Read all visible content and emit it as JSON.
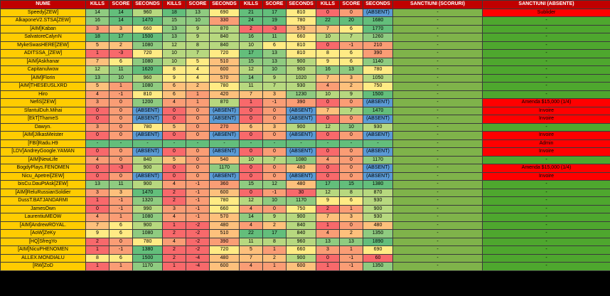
{
  "headers": [
    "NUME",
    "KILLS",
    "SCORE",
    "SECONDS",
    "KILLS",
    "SCORE",
    "SECONDS",
    "KILLS",
    "SCORE",
    "SECONDS",
    "KILLS",
    "SCORE",
    "SECONDS",
    "SANCTIUNI (SCORURI)",
    "SANCTIUNI (ABSENTE)"
  ],
  "rows": [
    [
      "Speedy[ZEW]",
      "14",
      "14",
      "960",
      "18",
      "13",
      "690",
      "21",
      "17",
      "810",
      "0",
      "0",
      "(ABSENT)",
      "-",
      "Sublider"
    ],
    [
      "AlkaponeV2.STSA[ZEW]",
      "16",
      "14",
      "1470",
      "15",
      "10",
      "330",
      "24",
      "19",
      "780",
      "22",
      "20",
      "1680",
      "-",
      "-"
    ],
    [
      "[AIM]Kaban",
      "3",
      "3",
      "660",
      "13",
      "9",
      "870",
      "2",
      "-3",
      "570",
      "7",
      "6",
      "1770",
      "-",
      "-"
    ],
    [
      "SalvatoreCalynN",
      "18",
      "17",
      "1500",
      "13",
      "9",
      "840",
      "16",
      "11",
      "660",
      "10",
      "7",
      "1260",
      "-",
      "-"
    ],
    [
      "MykeSwasHERE[ZEW]",
      "5",
      "2",
      "1080",
      "12",
      "8",
      "840",
      "10",
      "6",
      "810",
      "0",
      "-1",
      "210",
      "-",
      "-"
    ],
    [
      "ADITSSA_[ZEW]",
      "1",
      "-3",
      "720",
      "10",
      "7",
      "720",
      "17",
      "13",
      "810",
      "8",
      "6",
      "390",
      "-",
      "-"
    ],
    [
      "[AIM]Askhanar",
      "7",
      "6",
      "1080",
      "10",
      "5",
      "510",
      "15",
      "13",
      "900",
      "9",
      "6",
      "1140",
      "-",
      "-"
    ],
    [
      "Capitanulwow",
      "12",
      "11",
      "1620",
      "8",
      "4",
      "600",
      "12",
      "10",
      "900",
      "16",
      "13",
      "780",
      "-",
      "-"
    ],
    [
      "[AIM]Florin",
      "13",
      "10",
      "960",
      "9",
      "4",
      "570",
      "14",
      "9",
      "1020",
      "7",
      "3",
      "1050",
      "-",
      "-"
    ],
    [
      "[AIM]THESEUSLXRD",
      "5",
      "1",
      "1080",
      "6",
      "2",
      "780",
      "11",
      "7",
      "930",
      "4",
      "2",
      "750",
      "-",
      "-"
    ],
    [
      "Hiro",
      "4",
      "-1",
      "810",
      "6",
      "1",
      "420",
      "7",
      "3",
      "1230",
      "10",
      "9",
      "1500",
      "-",
      "-"
    ],
    [
      "NefiS[ZEW]",
      "3",
      "0",
      "1200",
      "4",
      "1",
      "870",
      "1",
      "-1",
      "390",
      "0",
      "0",
      "(ABSENT)",
      "-",
      "Amenda $15,000 (1/4)"
    ],
    [
      "SfantulDuh.Mihai",
      "0",
      "0",
      "(ABSENT)",
      "0",
      "0",
      "(ABSENT)",
      "0",
      "0",
      "(ABSENT)",
      "7",
      "7",
      "1470",
      "-",
      "Invoire"
    ],
    [
      "[EkT]ThameS",
      "0",
      "0",
      "(ABSENT)",
      "0",
      "0",
      "(ABSENT)",
      "0",
      "0",
      "(ABSENT)",
      "0",
      "0",
      "(ABSENT)",
      "-",
      "Invoire"
    ],
    [
      "Dawyn.",
      "3",
      "0",
      "780",
      "5",
      "0",
      "270",
      "6",
      "3",
      "900",
      "12",
      "10",
      "930",
      "-",
      "-"
    ],
    [
      "[AIM]JilkasMeister",
      "0",
      "0",
      "(ABSENT)",
      "0",
      "0",
      "(ABSENT)",
      "0",
      "0",
      "(ABSENT)",
      "0",
      "0",
      "(ABSENT)",
      "-",
      "Invoire"
    ],
    [
      "[FBI]Radu.H9",
      "-",
      "-",
      "-",
      "-",
      "-",
      "-",
      "-",
      "-",
      "-",
      "-",
      "-",
      "-",
      "-",
      "Admin"
    ],
    [
      "[LDV]AndreyGoogle.YAMAN",
      "0",
      "0",
      "(ABSENT)",
      "0",
      "0",
      "(ABSENT)",
      "0",
      "0",
      "(ABSENT)",
      "0",
      "0",
      "(ABSENT)",
      "-",
      "Invoire"
    ],
    [
      "[AIM]NewLife",
      "4",
      "0",
      "840",
      "5",
      "0",
      "540",
      "10",
      "7",
      "1080",
      "4",
      "0",
      "1170",
      "-",
      "-"
    ],
    [
      "BogdyPlays.FENOMEN",
      "0",
      "-3",
      "900",
      "0",
      "0",
      "1170",
      "0",
      "0",
      "480",
      "0",
      "0",
      "(ABSENT)",
      "-",
      "Amenda $15,000 (1/4)"
    ],
    [
      "Nicu_Apetrei[ZEW]",
      "0",
      "0",
      "(ABSENT)",
      "0",
      "0",
      "(ABSENT)",
      "0",
      "0",
      "(ABSENT)",
      "0",
      "0",
      "(ABSENT)",
      "-",
      "Invoire"
    ],
    [
      "bisCu.DauPtAsk[ZEW]",
      "13",
      "11",
      "900",
      "4",
      "-1",
      "360",
      "15",
      "12",
      "480",
      "17",
      "15",
      "1380",
      "-",
      "-"
    ],
    [
      "[AIM]ReluRussianSoldier",
      "3",
      "3",
      "1470",
      "2",
      "-1",
      "600",
      "0",
      "-1",
      "30",
      "12",
      "8",
      "870",
      "-",
      "-"
    ],
    [
      "DussT.BATJANDARMI",
      "1",
      "-1",
      "1320",
      "2",
      "-1",
      "780",
      "12",
      "10",
      "1170",
      "9",
      "6",
      "930",
      "-",
      "-"
    ],
    [
      "JamesOwn",
      "0",
      "-1",
      "990",
      "3",
      "-1",
      "660",
      "4",
      "0",
      "750",
      "2",
      "1",
      "900",
      "-",
      "-"
    ],
    [
      "LaurentiuMEOW",
      "4",
      "1",
      "1080",
      "4",
      "-1",
      "570",
      "14",
      "9",
      "900",
      "7",
      "3",
      "930",
      "-",
      "-"
    ],
    [
      "[AIM]AndrewROYAL.",
      "7",
      "6",
      "900",
      "1",
      "-2",
      "480",
      "4",
      "2",
      "840",
      "1",
      "0",
      "480",
      "-",
      "-"
    ],
    [
      "[AoW]ZeKy",
      "9",
      "6",
      "1080",
      "2",
      "-2",
      "510",
      "22",
      "17",
      "840",
      "4",
      "2",
      "1350",
      "-",
      "-"
    ],
    [
      "[HQ]SfregYo",
      "2",
      "0",
      "780",
      "4",
      "-2",
      "390",
      "11",
      "8",
      "960",
      "13",
      "13",
      "1890",
      "-",
      "-"
    ],
    [
      "[AIM]NicuPHENOMEN",
      "1",
      "-1",
      "1380",
      "2",
      "-2",
      "720",
      "5",
      "1",
      "660",
      "3",
      "1",
      "690",
      "-",
      "-"
    ],
    [
      "ALLEX.MONDIALU",
      "8",
      "6",
      "1500",
      "2",
      "-4",
      "480",
      "7",
      "2",
      "900",
      "0",
      "-1",
      "60",
      "-",
      "-"
    ],
    [
      "[RW]ZoD",
      "1",
      "1",
      "1170",
      "1",
      "-4",
      "600",
      "4",
      "1",
      "600",
      "1",
      "-1",
      "1350",
      "-",
      "-"
    ]
  ]
}
